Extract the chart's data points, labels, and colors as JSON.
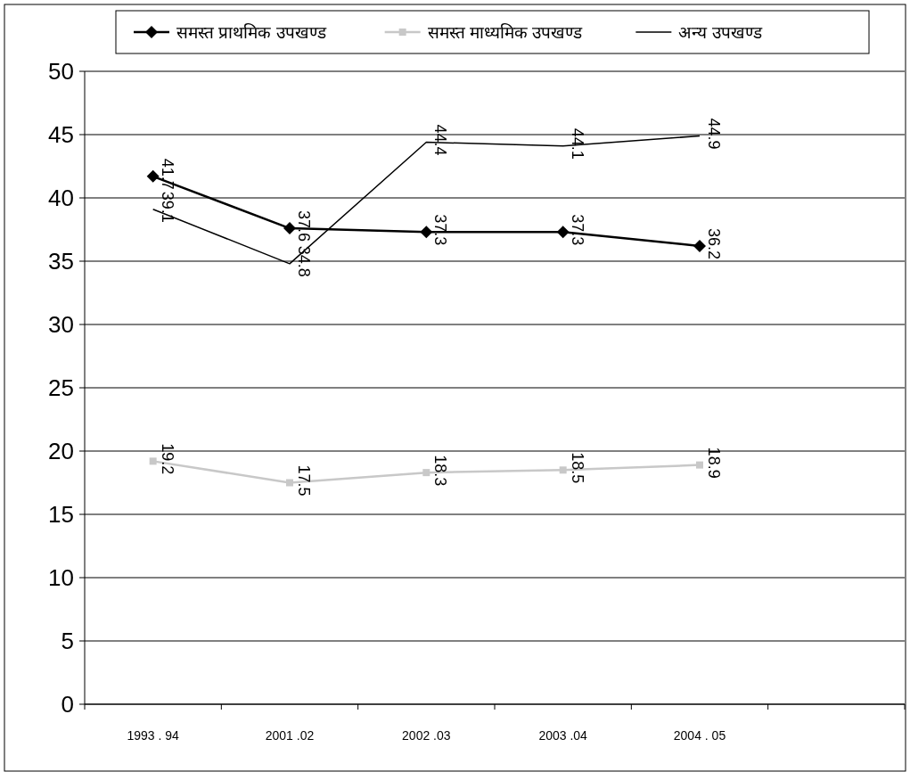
{
  "chart_data": {
    "type": "line",
    "categories": [
      "1993 . 94",
      "2001 .02",
      "2002 .03",
      "2003 .04",
      "2004 . 05",
      null
    ],
    "series": [
      {
        "name": "समस्त प्राथमिक उपखण्ड",
        "color": "#000000",
        "marker": "diamond",
        "values": [
          41.7,
          37.6,
          37.3,
          37.3,
          36.2,
          null
        ]
      },
      {
        "name": "समस्त माध्यमिक उपखण्ड",
        "color": "#c8c8c8",
        "marker": "square",
        "values": [
          19.2,
          17.5,
          18.3,
          18.5,
          18.9,
          null
        ]
      },
      {
        "name": "अन्य उपखण्ड",
        "color": "#000000",
        "marker": "none",
        "values": [
          39.1,
          34.8,
          44.4,
          44.1,
          44.9,
          null
        ]
      }
    ],
    "ylim": [
      0,
      50
    ],
    "yticks": [
      0,
      5,
      10,
      15,
      20,
      25,
      30,
      35,
      40,
      45,
      50
    ],
    "grid": "y",
    "legend": "top",
    "data_labels": true
  }
}
